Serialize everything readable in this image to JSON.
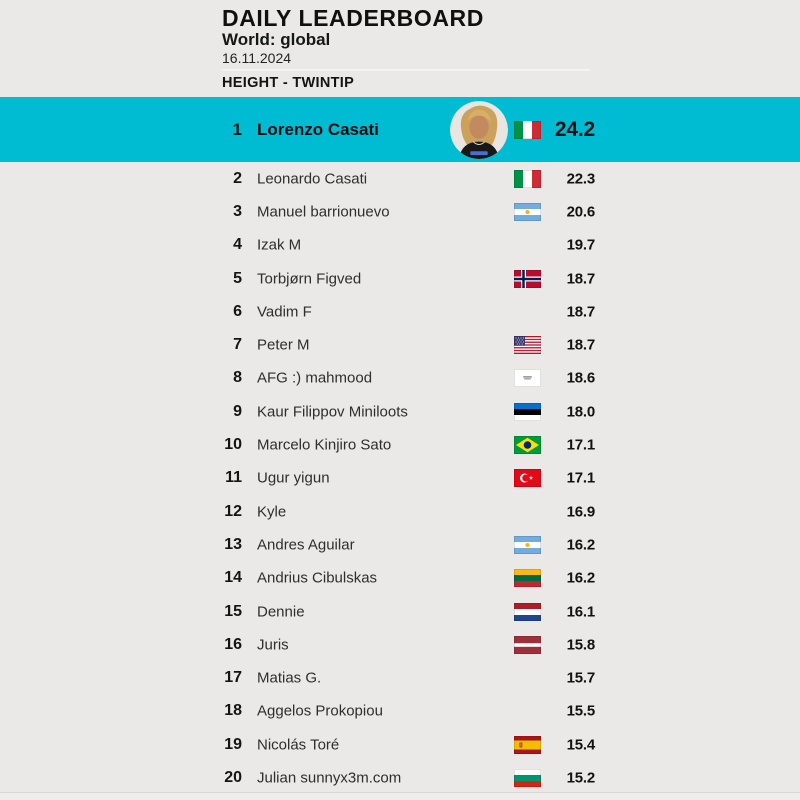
{
  "header": {
    "title": "DAILY LEADERBOARD",
    "subtitle": "World: global",
    "date": "16.11.2024",
    "section": "HEIGHT - TWINTIP"
  },
  "colors": {
    "highlight_row": "#00bcd3",
    "page_background": "#eae9e7",
    "text": "#111111"
  },
  "leaderboard": {
    "rows": [
      {
        "rank": "1",
        "name": "Lorenzo Casati",
        "flag": "italy",
        "score": "24.2",
        "highlighted": true,
        "avatar": "lorenzo-casati-photo"
      },
      {
        "rank": "2",
        "name": "Leonardo Casati",
        "flag": "italy",
        "score": "22.3"
      },
      {
        "rank": "3",
        "name": "Manuel barrionuevo",
        "flag": "argentina",
        "score": "20.6"
      },
      {
        "rank": "4",
        "name": "Izak M",
        "flag": null,
        "score": "19.7"
      },
      {
        "rank": "5",
        "name": "Torbjørn Figved",
        "flag": "norway",
        "score": "18.7"
      },
      {
        "rank": "6",
        "name": "Vadim F",
        "flag": null,
        "score": "18.7"
      },
      {
        "rank": "7",
        "name": "Peter M",
        "flag": "usa",
        "score": "18.7"
      },
      {
        "rank": "8",
        "name": "AFG :) mahmood",
        "flag": "afghanistan",
        "score": "18.6"
      },
      {
        "rank": "9",
        "name": "Kaur Filippov Miniloots",
        "flag": "estonia",
        "score": "18.0"
      },
      {
        "rank": "10",
        "name": "Marcelo Kinjiro Sato",
        "flag": "brazil",
        "score": "17.1"
      },
      {
        "rank": "11",
        "name": "Ugur yigun",
        "flag": "turkey",
        "score": "17.1"
      },
      {
        "rank": "12",
        "name": "Kyle",
        "flag": null,
        "score": "16.9"
      },
      {
        "rank": "13",
        "name": "Andres Aguilar",
        "flag": "argentina",
        "score": "16.2"
      },
      {
        "rank": "14",
        "name": "Andrius Cibulskas",
        "flag": "lithuania",
        "score": "16.2"
      },
      {
        "rank": "15",
        "name": "Dennie",
        "flag": "netherlands",
        "score": "16.1"
      },
      {
        "rank": "16",
        "name": "Juris",
        "flag": "latvia",
        "score": "15.8"
      },
      {
        "rank": "17",
        "name": "Matias G.",
        "flag": null,
        "score": "15.7"
      },
      {
        "rank": "18",
        "name": "Aggelos Prokopiou",
        "flag": null,
        "score": "15.5"
      },
      {
        "rank": "19",
        "name": "Nicolás Toré",
        "flag": "spain",
        "score": "15.4"
      },
      {
        "rank": "20",
        "name": "Julian sunnyx3m.com",
        "flag": "bulgaria",
        "score": "15.2"
      }
    ]
  }
}
